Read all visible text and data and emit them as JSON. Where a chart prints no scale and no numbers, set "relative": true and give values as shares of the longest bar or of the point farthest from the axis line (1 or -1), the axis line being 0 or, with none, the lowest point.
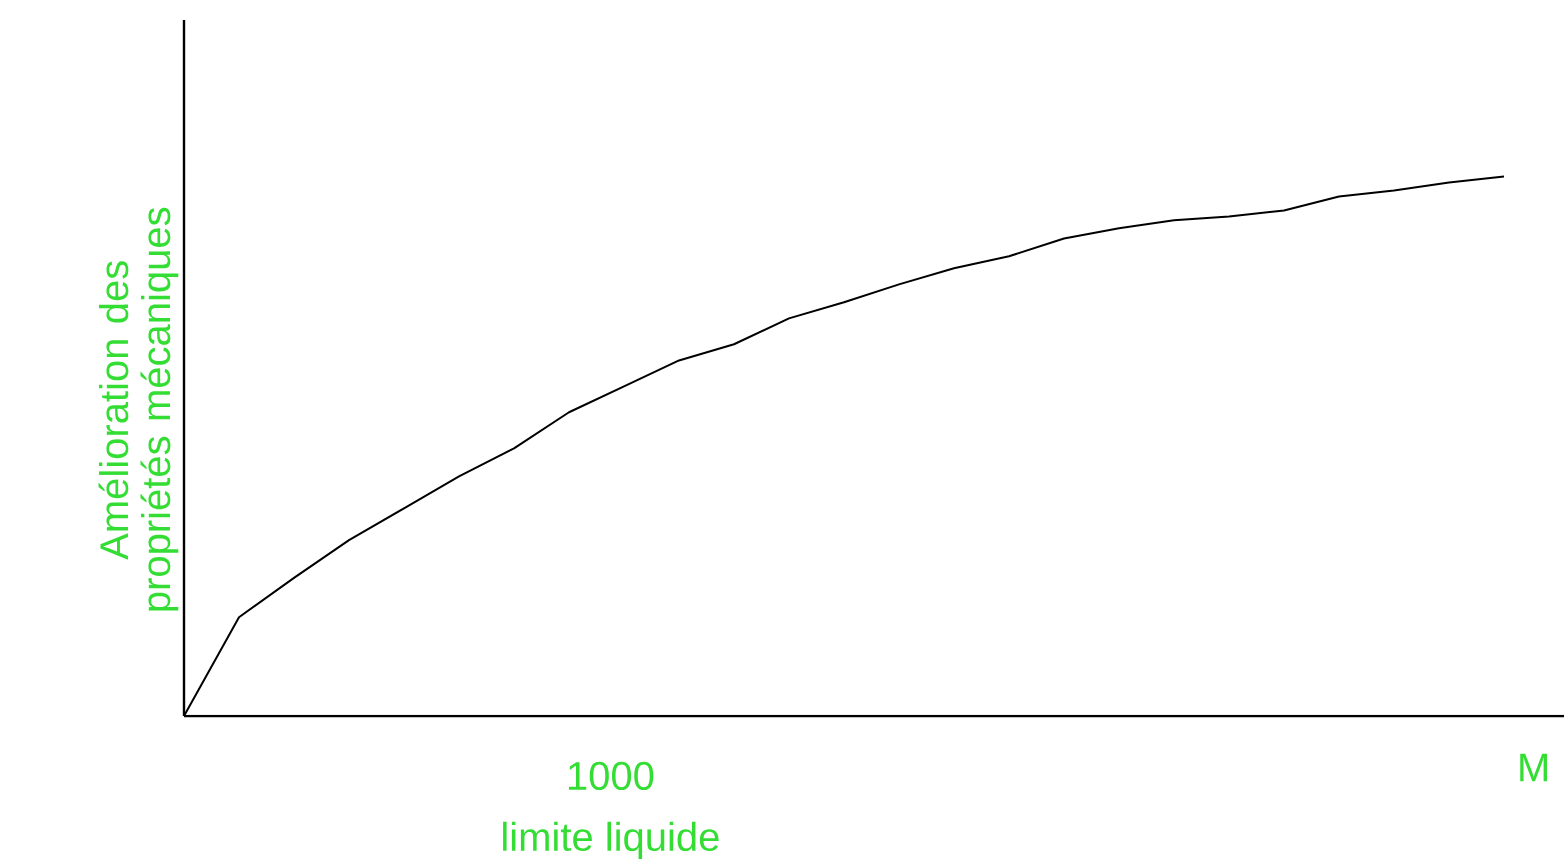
{
  "chart_data": {
    "type": "line",
    "relative": true,
    "xlabel": "M",
    "ylabel": "Amélioration des propriétés mécaniques",
    "annotations": [
      "1000",
      "limite liquide"
    ],
    "categories": [
      null,
      null,
      null,
      null,
      null,
      null,
      null,
      null,
      null,
      null,
      null,
      null,
      null,
      null,
      null,
      null,
      null,
      null,
      null,
      null,
      null,
      null,
      null,
      null,
      null
    ],
    "series": [
      {
        "color": "#000000",
        "values": [
          0,
          0.183,
          0.256,
          0.326,
          0.385,
          0.444,
          0.496,
          0.563,
          0.611,
          0.659,
          0.689,
          0.737,
          0.767,
          0.8,
          0.83,
          0.852,
          0.885,
          0.904,
          0.919,
          0.926,
          0.937,
          0.963,
          0.974,
          0.989,
          1
        ]
      }
    ]
  }
}
